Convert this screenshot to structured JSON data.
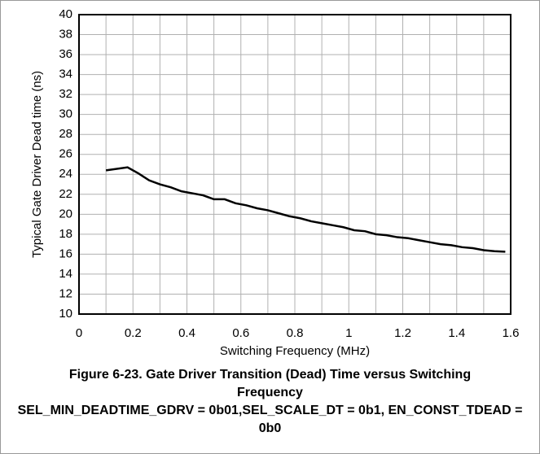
{
  "chart_data": {
    "type": "line",
    "title": "Figure 6-23. Gate Driver Transition (Dead) Time versus Switching Frequency",
    "subtitle": "SEL_MIN_DEADTIME_GDRV = 0b01,SEL_SCALE_DT = 0b1, EN_CONST_TDEAD = 0b0",
    "x_label": "Switching Frequency (MHz)",
    "y_label": "Typical Gate Driver Dead time (ns)",
    "x": [
      0.1,
      0.18,
      0.22,
      0.26,
      0.3,
      0.34,
      0.38,
      0.42,
      0.46,
      0.5,
      0.54,
      0.58,
      0.62,
      0.66,
      0.7,
      0.74,
      0.78,
      0.82,
      0.86,
      0.9,
      0.94,
      0.98,
      1.02,
      1.06,
      1.1,
      1.14,
      1.18,
      1.22,
      1.26,
      1.3,
      1.34,
      1.38,
      1.42,
      1.46,
      1.5,
      1.54,
      1.58
    ],
    "values": [
      24.4,
      24.7,
      24.1,
      23.4,
      23.0,
      22.7,
      22.3,
      22.1,
      21.9,
      21.5,
      21.5,
      21.1,
      20.9,
      20.6,
      20.4,
      20.1,
      19.8,
      19.6,
      19.3,
      19.1,
      18.9,
      18.7,
      18.4,
      18.3,
      18.0,
      17.9,
      17.7,
      17.6,
      17.4,
      17.2,
      17.0,
      16.9,
      16.7,
      16.6,
      16.4,
      16.3,
      16.25
    ],
    "color": "#000000",
    "xlim": [
      0,
      1.6
    ],
    "xticks": [
      0,
      0.2,
      0.4,
      0.6,
      0.8,
      1,
      1.2,
      1.4,
      1.6
    ],
    "ylim": [
      10,
      40
    ],
    "yticks": [
      10,
      12,
      14,
      16,
      18,
      20,
      22,
      24,
      26,
      28,
      30,
      32,
      34,
      36,
      38,
      40
    ],
    "grid": true
  }
}
